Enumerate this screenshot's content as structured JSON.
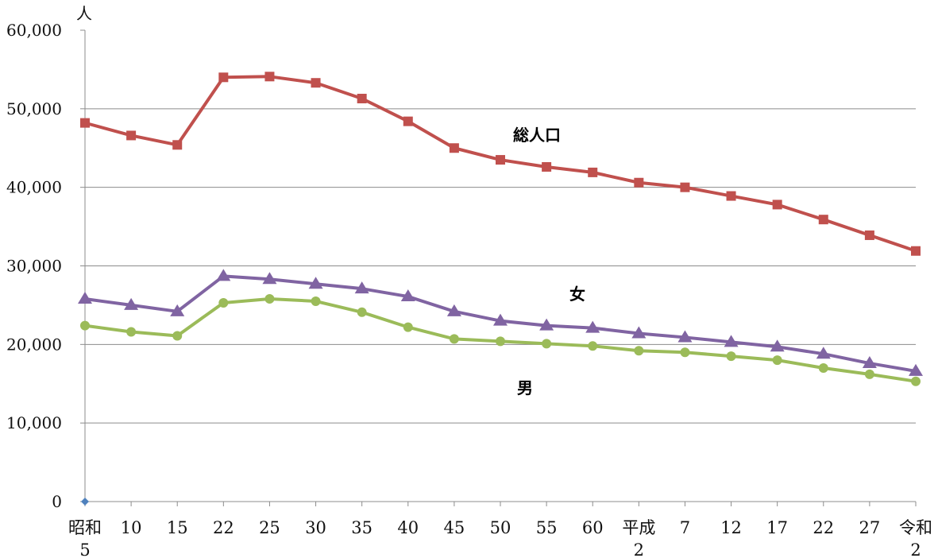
{
  "chart_data": {
    "type": "line",
    "y_unit": "人",
    "ylim": [
      0,
      60000
    ],
    "yticks": [
      "0",
      "10,000",
      "20,000",
      "30,000",
      "40,000",
      "50,000",
      "60,000"
    ],
    "grid": true,
    "categories": [
      [
        "昭和",
        "5"
      ],
      [
        "10"
      ],
      [
        "15"
      ],
      [
        "22"
      ],
      [
        "25"
      ],
      [
        "30"
      ],
      [
        "35"
      ],
      [
        "40"
      ],
      [
        "45"
      ],
      [
        "50"
      ],
      [
        "55"
      ],
      [
        "60"
      ],
      [
        "平成",
        "2"
      ],
      [
        "7"
      ],
      [
        "12"
      ],
      [
        "17"
      ],
      [
        "22"
      ],
      [
        "27"
      ],
      [
        "令和",
        "2"
      ]
    ],
    "series": [
      {
        "name": "総人口",
        "color": "#c0504d",
        "marker": "square",
        "values": [
          48200,
          46600,
          45400,
          54000,
          54100,
          53300,
          51300,
          48400,
          45000,
          43500,
          42600,
          41900,
          40600,
          40000,
          38900,
          37800,
          35900,
          33900,
          31900
        ]
      },
      {
        "name": "女",
        "color": "#8064a2",
        "marker": "triangle",
        "values": [
          25800,
          25000,
          24200,
          28700,
          28300,
          27700,
          27100,
          26100,
          24200,
          23000,
          22400,
          22100,
          21400,
          20900,
          20300,
          19700,
          18800,
          17600,
          16600
        ]
      },
      {
        "name": "男",
        "color": "#9bbb59",
        "marker": "circle",
        "values": [
          22400,
          21600,
          21100,
          25300,
          25800,
          25500,
          24100,
          22200,
          20700,
          20400,
          20100,
          19800,
          19200,
          19000,
          18500,
          18000,
          17000,
          16200,
          15300
        ]
      }
    ],
    "origin_marker_color": "#4f81bd"
  }
}
